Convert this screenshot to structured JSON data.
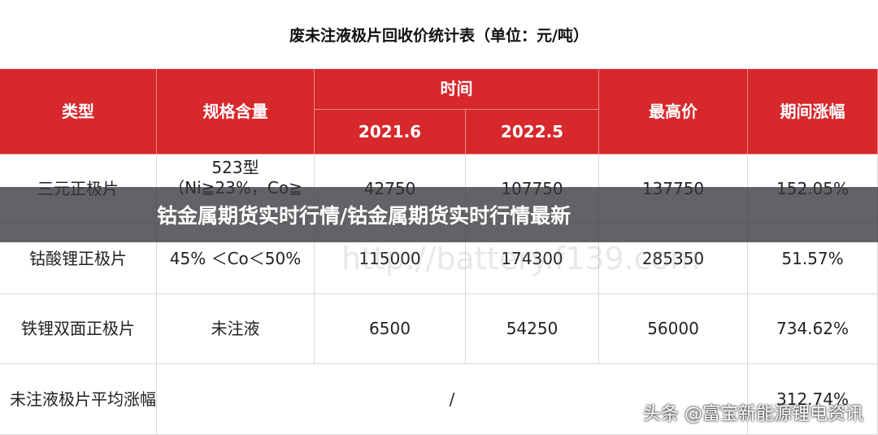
{
  "header": {
    "title": "废未注液极片回收价统计表（单位：元/吨）"
  },
  "table": {
    "columns": [
      "类型",
      "规格含量",
      "时间",
      "最高价",
      "期间涨幅"
    ],
    "time_columns": [
      "2021.6",
      "2022.5"
    ],
    "rows": [
      [
        "三元正极片",
        [
          "523型",
          "（Ni≧23%，Co≧"
        ],
        "42750",
        "107750",
        "137750",
        "152.05%"
      ],
      [
        "钴酸锂正极片",
        [
          "45% ＜Co＜50%"
        ],
        "115000",
        "174300",
        "285350",
        "51.57%"
      ],
      [
        "铁锂双面正极片",
        [
          "未注液"
        ],
        "6500",
        "54250",
        "56000",
        "734.62%"
      ]
    ],
    "summary": [
      "未注液极片平均涨幅",
      "/",
      "312.74%"
    ]
  },
  "banner": {
    "title": "钴金属期货实时行情/钴金属期货实时行情最新"
  },
  "watermark": {
    "background": "http://battery.f139.com",
    "source": "头条 @富宝新能源锂电资讯"
  }
}
